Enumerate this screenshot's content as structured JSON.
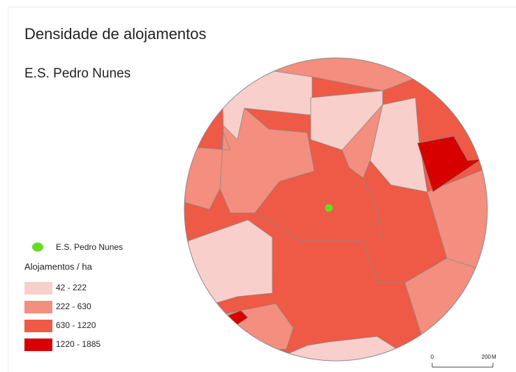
{
  "title": "Densidade de alojamentos",
  "subtitle": "E.S. Pedro Nunes",
  "point": {
    "label": "E.S. Pedro Nunes",
    "color": "#66dd22"
  },
  "legend": {
    "title": "Alojamentos / ha",
    "classes": [
      {
        "label": "42 - 222",
        "color": "#f9cfcb"
      },
      {
        "label": "222 - 630",
        "color": "#f48e7e"
      },
      {
        "label": "630 - 1220",
        "color": "#ee5a45"
      },
      {
        "label": "1220 - 1885",
        "color": "#d60000"
      }
    ]
  },
  "scale_bar": {
    "start": "0",
    "end": "200",
    "unit": "M"
  }
}
